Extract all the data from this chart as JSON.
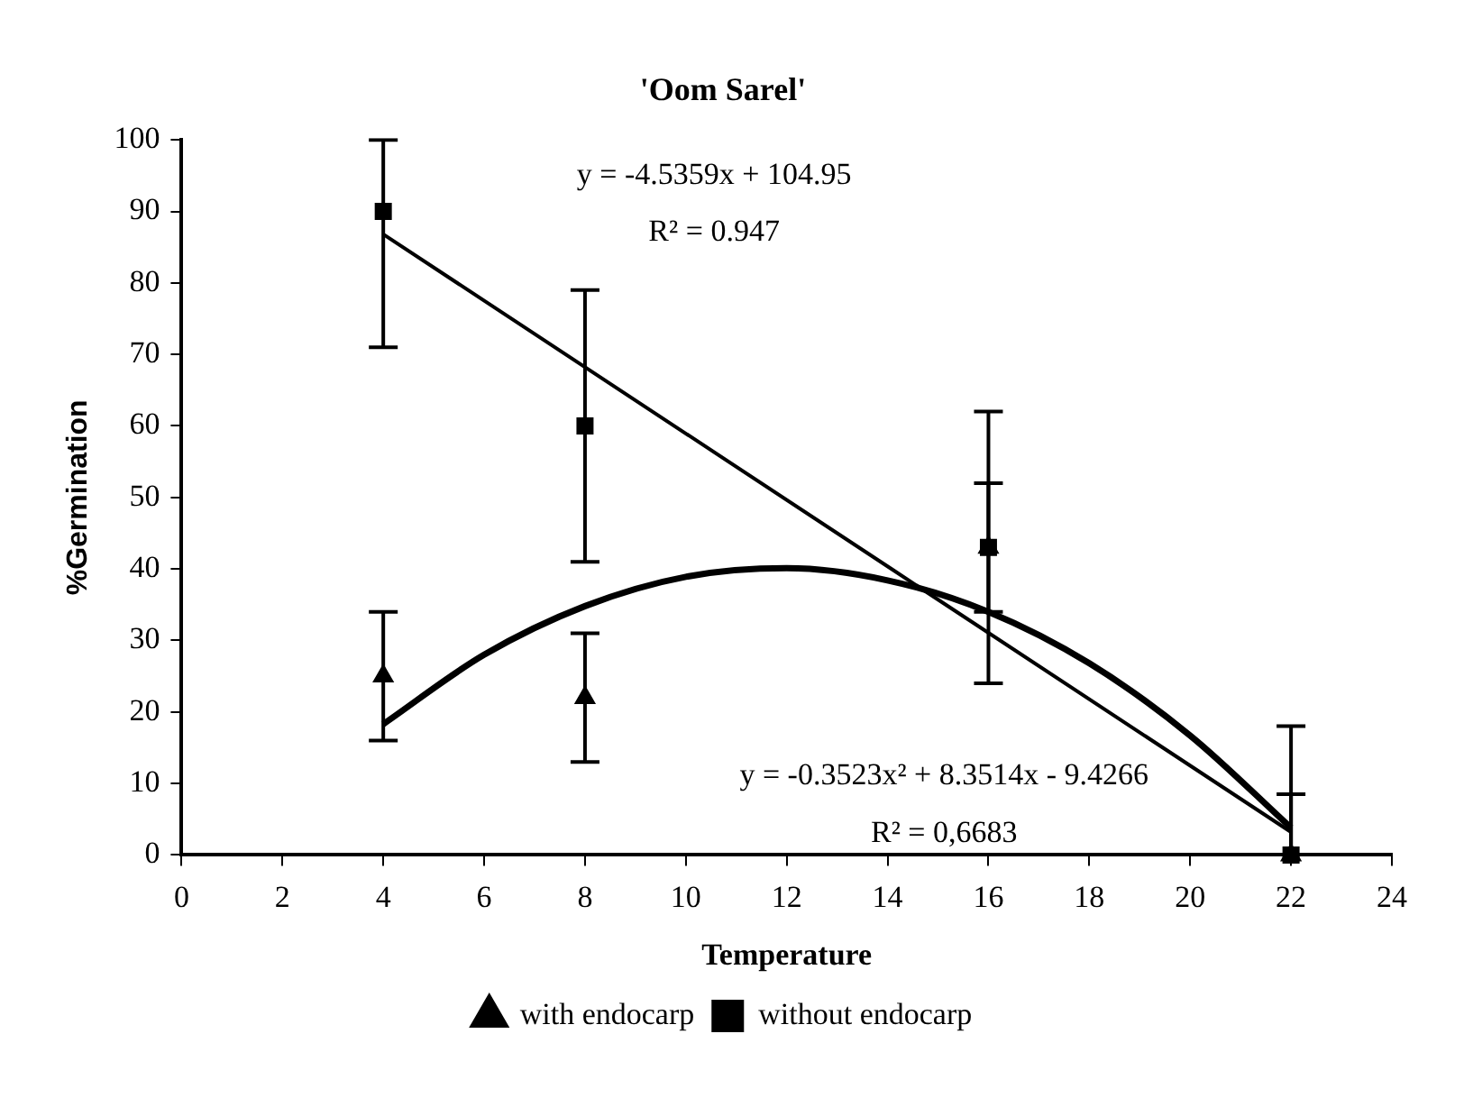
{
  "chart_data": {
    "type": "scatter",
    "title": "'Oom Sarel'",
    "xlabel": "Temperature",
    "ylabel": "%Germination",
    "xlim": [
      0,
      24
    ],
    "xticks": [
      0,
      2,
      4,
      6,
      8,
      10,
      12,
      14,
      16,
      18,
      20,
      22,
      24
    ],
    "ylim": [
      0,
      100
    ],
    "yticks": [
      0,
      10,
      20,
      30,
      40,
      50,
      60,
      70,
      80,
      90,
      100
    ],
    "grid": false,
    "legend": "bottom",
    "series": [
      {
        "name": "with endocarp",
        "type": "scatter",
        "marker": "triangle",
        "color": "#000000",
        "x": [
          4,
          8,
          16,
          22
        ],
        "values": [
          25,
          22,
          43,
          0
        ],
        "errors": [
          9,
          9,
          9,
          [
            0,
            8.5
          ]
        ]
      },
      {
        "name": "without endocarp",
        "type": "scatter",
        "marker": "square",
        "color": "#000000",
        "x": [
          4,
          8,
          16,
          22
        ],
        "values": [
          90,
          60,
          43,
          0
        ],
        "errors": [
          [
            71,
            100
          ],
          19,
          19,
          [
            0,
            18
          ]
        ]
      },
      {
        "type": "line",
        "marker": "none",
        "color": "#000000",
        "x": [
          4,
          22
        ],
        "values": [
          86.8,
          3.2
        ]
      },
      {
        "type": "line",
        "marker": "none",
        "color": "#000000",
        "x": [
          4,
          6,
          8,
          10,
          12,
          14,
          16,
          18,
          20,
          22
        ],
        "values": [
          18.3,
          28.0,
          34.8,
          38.9,
          40.1,
          38.4,
          34.0,
          26.8,
          16.7,
          3.8
        ]
      }
    ],
    "annotations": [
      "y = -4.5359x + 104.95",
      "R² = 0.947",
      "y = -0.3523x² + 8.3514x - 9.4266",
      "R² = 0,6683"
    ]
  }
}
